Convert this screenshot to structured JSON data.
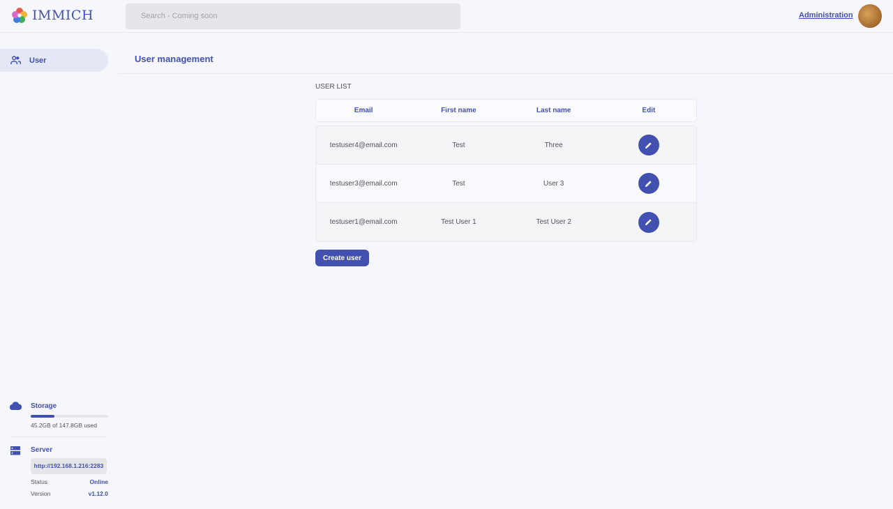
{
  "app": {
    "name": "IMMICH"
  },
  "header": {
    "search_placeholder": "Search - Coming soon",
    "admin_link": "Administration"
  },
  "sidebar": {
    "items": [
      {
        "label": "User",
        "icon": "users-icon"
      }
    ],
    "storage": {
      "label": "Storage",
      "used_text": "45.2GB of 147.8GB used",
      "used_fraction": 0.306
    },
    "server": {
      "label": "Server",
      "url": "http://192.168.1.216:2283",
      "status_label": "Status",
      "status_value": "Online",
      "version_label": "Version",
      "version_value": "v1.12.0"
    }
  },
  "main": {
    "title": "User management",
    "section_label": "USER LIST",
    "columns": [
      "Email",
      "First name",
      "Last name",
      "Edit"
    ],
    "rows": [
      {
        "email": "testuser4@email.com",
        "first": "Test",
        "last": "Three"
      },
      {
        "email": "testuser3@email.com",
        "first": "Test",
        "last": "User 3"
      },
      {
        "email": "testuser1@email.com",
        "first": "Test User 1",
        "last": "Test User 2"
      }
    ],
    "create_label": "Create user"
  },
  "colors": {
    "accent": "#4250af",
    "background": "#f6f7fc"
  }
}
